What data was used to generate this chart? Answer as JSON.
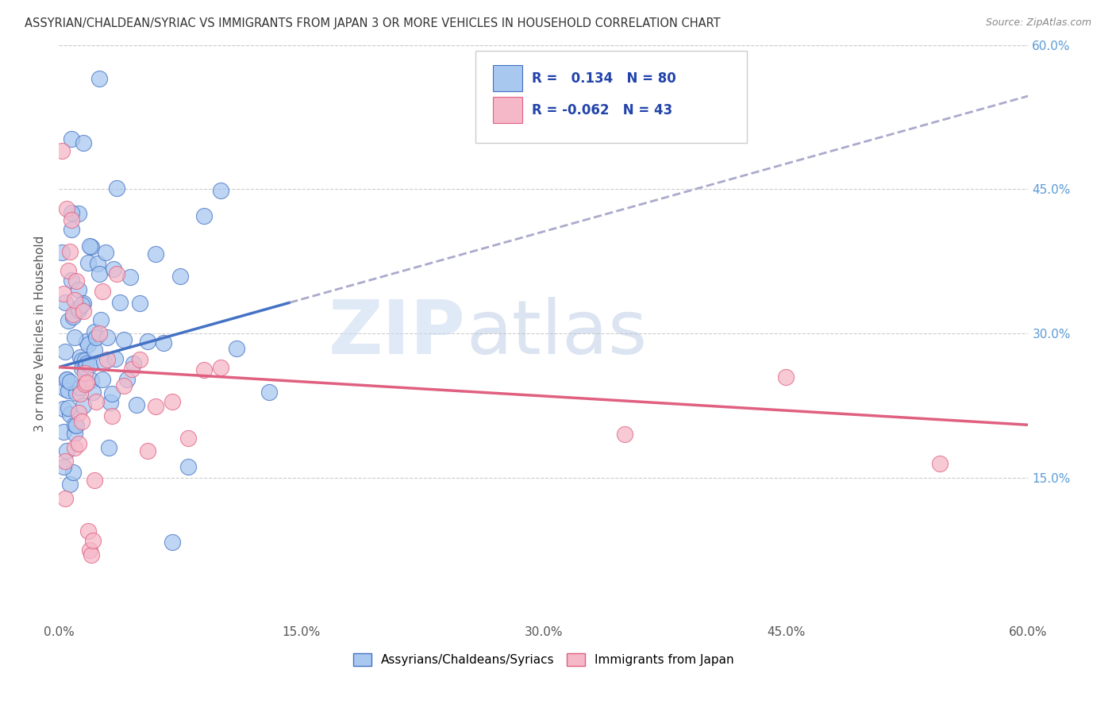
{
  "title": "ASSYRIAN/CHALDEAN/SYRIAC VS IMMIGRANTS FROM JAPAN 3 OR MORE VEHICLES IN HOUSEHOLD CORRELATION CHART",
  "source": "Source: ZipAtlas.com",
  "ylabel": "3 or more Vehicles in Household",
  "legend_label1": "Assyrians/Chaldeans/Syriacs",
  "legend_label2": "Immigrants from Japan",
  "r1": "0.134",
  "n1": "80",
  "r2": "-0.062",
  "n2": "43",
  "xlim": [
    0.0,
    0.6
  ],
  "ylim": [
    0.0,
    0.6
  ],
  "ytick_labels": [
    "15.0%",
    "30.0%",
    "45.0%",
    "60.0%"
  ],
  "ytick_values": [
    0.15,
    0.3,
    0.45,
    0.6
  ],
  "xtick_labels": [
    "0.0%",
    "15.0%",
    "30.0%",
    "45.0%",
    "60.0%"
  ],
  "xtick_values": [
    0.0,
    0.15,
    0.3,
    0.45,
    0.6
  ],
  "color_blue": "#A8C8F0",
  "color_pink": "#F5B8C8",
  "line_blue": "#4472C4",
  "line_pink": "#E06080",
  "line_dash_color": "#AAAACC",
  "background_color": "#FFFFFF",
  "watermark_zip": "ZIP",
  "watermark_atlas": "atlas",
  "grid_color": "#CCCCCC",
  "right_tick_color": "#5B9BD5",
  "title_color": "#333333",
  "source_color": "#888888",
  "ylabel_color": "#555555",
  "xtick_color": "#555555"
}
